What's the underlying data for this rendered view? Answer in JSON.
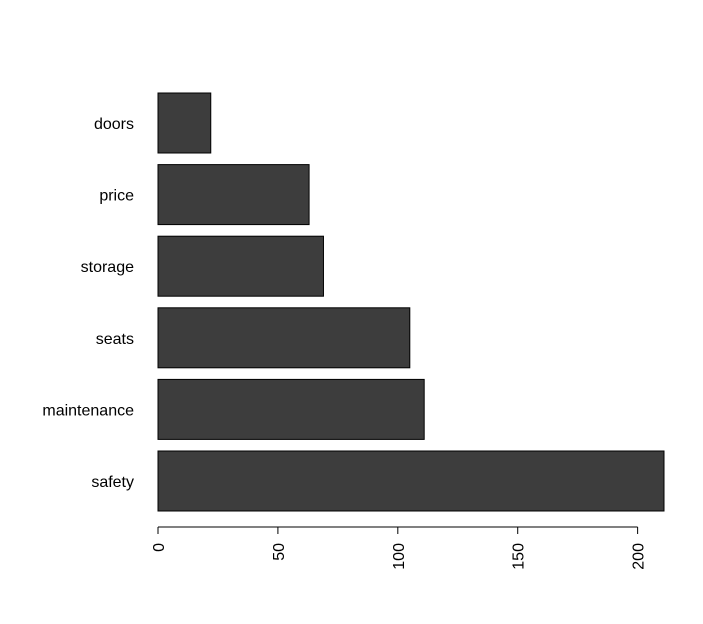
{
  "chart_data": {
    "type": "bar",
    "orientation": "horizontal",
    "categories": [
      "safety",
      "maintenance",
      "seats",
      "storage",
      "price",
      "doors"
    ],
    "values": [
      211,
      111,
      105,
      69,
      63,
      22
    ],
    "xticks": [
      0,
      50,
      100,
      150,
      200
    ],
    "xtick_labels": [
      "0",
      "50",
      "100",
      "150",
      "200"
    ],
    "xlim": [
      0,
      211
    ],
    "title": "",
    "xlabel": "",
    "ylabel": "",
    "bar_color": "#3d3d3d",
    "grid": false
  }
}
